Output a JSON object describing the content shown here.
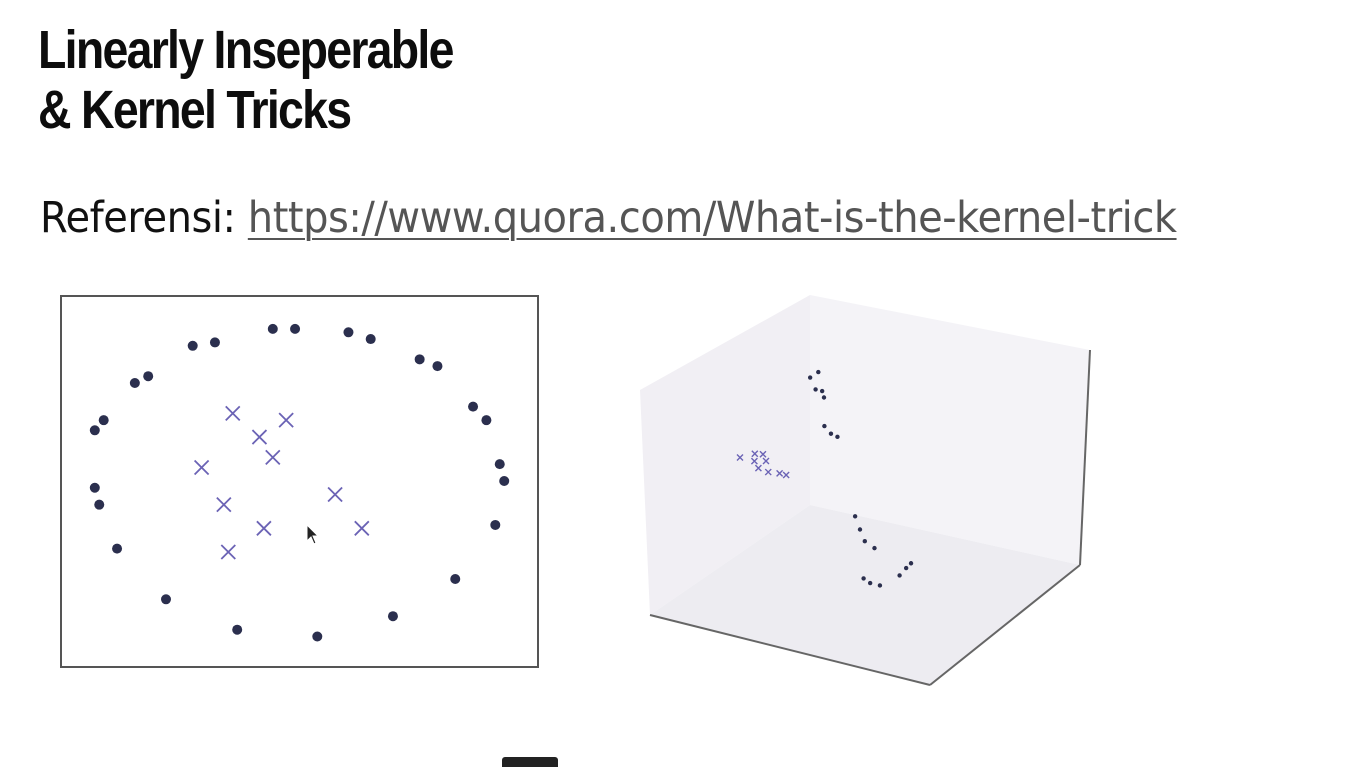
{
  "slide": {
    "title_line1": "Linearly Inseperable",
    "title_line2": "& Kernel Tricks",
    "reference_label": "Referensi:",
    "reference_link": "https://www.quora.com/What-is-the-kernel-trick"
  },
  "colors": {
    "dot": "#2b2f4e",
    "cross": "#6b63b5",
    "frame": "#555555",
    "link": "#555555"
  },
  "chart_data": [
    {
      "type": "scatter",
      "xlim": [
        0,
        100
      ],
      "ylim": [
        0,
        100
      ],
      "grid": false,
      "series": [
        {
          "marker": "dot",
          "points": [
            [
              44,
              95
            ],
            [
              49,
              95
            ],
            [
              26,
              90
            ],
            [
              31,
              91
            ],
            [
              61,
              94
            ],
            [
              66,
              92
            ],
            [
              13,
              79
            ],
            [
              16,
              81
            ],
            [
              77,
              86
            ],
            [
              81,
              84
            ],
            [
              4,
              65
            ],
            [
              6,
              68
            ],
            [
              89,
              72
            ],
            [
              92,
              68
            ],
            [
              5,
              43
            ],
            [
              4,
              48
            ],
            [
              95,
              55
            ],
            [
              96,
              50
            ],
            [
              94,
              37
            ],
            [
              9,
              30
            ],
            [
              85,
              21
            ],
            [
              20,
              15
            ],
            [
              36,
              6
            ],
            [
              54,
              4
            ],
            [
              71,
              10
            ]
          ]
        },
        {
          "marker": "cross",
          "points": [
            [
              35,
              70
            ],
            [
              47,
              68
            ],
            [
              41,
              63
            ],
            [
              44,
              57
            ],
            [
              28,
              54
            ],
            [
              33,
              43
            ],
            [
              58,
              46
            ],
            [
              42,
              36
            ],
            [
              64,
              36
            ],
            [
              34,
              29
            ]
          ]
        }
      ]
    },
    {
      "type": "scatter",
      "projection": "3d",
      "grid": false,
      "series": [
        {
          "marker": "dot",
          "points": [
            [
              0.62,
              0.35,
              0.95
            ],
            [
              0.64,
              0.38,
              0.96
            ],
            [
              0.7,
              0.3,
              0.94
            ],
            [
              0.72,
              0.32,
              0.93
            ],
            [
              0.75,
              0.3,
              0.92
            ],
            [
              0.8,
              0.25,
              0.85
            ],
            [
              0.82,
              0.27,
              0.82
            ],
            [
              0.83,
              0.3,
              0.8
            ],
            [
              0.84,
              0.4,
              0.5
            ],
            [
              0.85,
              0.42,
              0.45
            ],
            [
              0.85,
              0.45,
              0.4
            ],
            [
              0.86,
              0.5,
              0.36
            ],
            [
              0.7,
              0.6,
              0.2
            ],
            [
              0.72,
              0.62,
              0.18
            ],
            [
              0.74,
              0.66,
              0.16
            ],
            [
              0.8,
              0.72,
              0.18
            ],
            [
              0.82,
              0.74,
              0.2
            ],
            [
              0.83,
              0.76,
              0.21
            ]
          ]
        },
        {
          "marker": "cross",
          "points": [
            [
              0.1,
              0.55,
              0.55
            ],
            [
              0.12,
              0.58,
              0.54
            ],
            [
              0.15,
              0.52,
              0.52
            ],
            [
              0.18,
              0.55,
              0.5
            ],
            [
              0.05,
              0.6,
              0.5
            ],
            [
              0.1,
              0.62,
              0.5
            ],
            [
              0.2,
              0.6,
              0.48
            ],
            [
              0.22,
              0.62,
              0.47
            ],
            [
              0.25,
              0.3,
              0.65
            ]
          ]
        }
      ]
    }
  ]
}
